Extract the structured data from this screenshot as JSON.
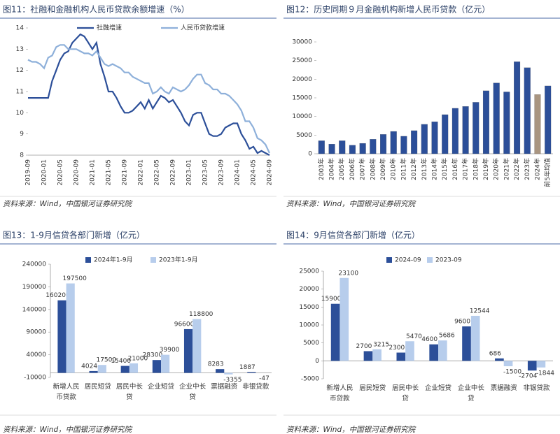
{
  "chart_data": [
    {
      "type": "line",
      "title": "图11：社融和金融机构人民币贷款余额增速（%）",
      "source": "资料来源：Wind，中国银河证券研究院",
      "categories": [
        "2019-09",
        null,
        null,
        null,
        "2020-01",
        null,
        null,
        null,
        "2020-05",
        null,
        null,
        null,
        "2020-09",
        null,
        null,
        null,
        "2021-01",
        null,
        null,
        null,
        "2021-05",
        null,
        null,
        null,
        "2021-09",
        null,
        null,
        null,
        "2022-01",
        null,
        null,
        null,
        "2022-05",
        null,
        null,
        null,
        "2022-09",
        null,
        null,
        null,
        "2023-01",
        null,
        null,
        null,
        "2023-05",
        null,
        null,
        null,
        "2023-09",
        null,
        null,
        null,
        "2024-01",
        null,
        null,
        null,
        "2024-05",
        null,
        null,
        null,
        "2024-09"
      ],
      "series": [
        {
          "name": "社融增速",
          "color": "#2c4f99",
          "values": [
            10.7,
            10.7,
            10.7,
            10.7,
            10.7,
            10.7,
            11.5,
            12.0,
            12.5,
            12.8,
            12.9,
            13.3,
            13.5,
            13.7,
            13.6,
            13.3,
            13.0,
            13.3,
            12.3,
            11.7,
            11.0,
            11.0,
            10.7,
            10.3,
            10.0,
            10.0,
            10.1,
            10.3,
            10.5,
            10.2,
            10.6,
            10.2,
            10.5,
            10.8,
            10.7,
            10.5,
            10.6,
            10.3,
            10.0,
            9.6,
            9.4,
            9.9,
            10.0,
            10.0,
            9.5,
            9.0,
            8.9,
            8.9,
            9.0,
            9.3,
            9.4,
            9.5,
            9.5,
            9.0,
            8.7,
            8.3,
            8.4,
            8.1,
            8.2,
            8.1,
            8.0
          ]
        },
        {
          "name": "人民币贷款增速",
          "color": "#8eb0da",
          "values": [
            12.5,
            12.4,
            12.4,
            12.3,
            12.1,
            12.6,
            12.7,
            13.1,
            13.2,
            13.2,
            13.0,
            13.0,
            13.0,
            12.9,
            12.8,
            12.8,
            12.7,
            12.9,
            12.6,
            12.3,
            12.2,
            12.3,
            12.2,
            12.1,
            11.9,
            11.9,
            11.7,
            11.6,
            11.5,
            11.4,
            11.4,
            10.9,
            11.0,
            11.2,
            11.0,
            10.9,
            11.2,
            11.1,
            11.0,
            11.1,
            11.3,
            11.6,
            11.8,
            11.8,
            11.4,
            11.3,
            11.1,
            11.1,
            10.9,
            10.9,
            10.8,
            10.6,
            10.4,
            10.1,
            9.6,
            9.6,
            9.3,
            8.8,
            8.7,
            8.5,
            8.1
          ]
        }
      ],
      "ylim": [
        8,
        14
      ],
      "yticks": [
        8,
        9,
        10,
        11,
        12,
        13,
        14
      ],
      "grid": false,
      "legend": "top"
    },
    {
      "type": "bar",
      "title": "图12：历史同期９月金融机构新增人民币贷款（亿元）",
      "source": "资料来源：Wind，中国银河证券研究院",
      "categories": [
        "2003年",
        "2004年",
        "2005年",
        "2006年",
        "2007年",
        "2008年",
        "2009年",
        "2010年",
        "2011年",
        "2012年",
        "2013年",
        "2014年",
        "2015年",
        "2016年",
        "2017年",
        "2018年",
        "2019年",
        "2020年",
        "2021年",
        "2022年",
        "2023年",
        "2024年",
        "前5年均值"
      ],
      "values": [
        3500,
        2600,
        3500,
        2300,
        2800,
        3900,
        5200,
        6000,
        4700,
        6200,
        7900,
        8600,
        10500,
        12200,
        12700,
        13800,
        16900,
        19000,
        16600,
        24700,
        23100,
        15900,
        18200
      ],
      "colors": [
        "#2c4f99",
        "#2c4f99",
        "#2c4f99",
        "#2c4f99",
        "#2c4f99",
        "#2c4f99",
        "#2c4f99",
        "#2c4f99",
        "#2c4f99",
        "#2c4f99",
        "#2c4f99",
        "#2c4f99",
        "#2c4f99",
        "#2c4f99",
        "#2c4f99",
        "#2c4f99",
        "#2c4f99",
        "#2c4f99",
        "#2c4f99",
        "#2c4f99",
        "#2c4f99",
        "#a99580",
        "#2c4f99"
      ],
      "ylim": [
        0,
        30000
      ],
      "yticks": [
        0,
        5000,
        10000,
        15000,
        20000,
        25000,
        30000
      ],
      "grid": false
    },
    {
      "type": "grouped_bar",
      "title": "图13：1-9月信贷各部门新增（亿元）",
      "source": "资料来源：Wind，中国银河证券研究院",
      "categories": [
        "新增人民币贷款",
        "居民短贷",
        "居民中长贷",
        "企业短贷",
        "企业中长贷",
        "票据融资",
        "非银贷款"
      ],
      "series": [
        {
          "name": "2024年1-9月",
          "color": "#2c4f99",
          "values": [
            160200,
            4024,
            15400,
            28300,
            96600,
            8283,
            1887
          ]
        },
        {
          "name": "2023年1-9月",
          "color": "#b7cdec",
          "values": [
            197500,
            17500,
            21000,
            39900,
            118800,
            -3355,
            -47
          ]
        }
      ],
      "ylim": [
        -10000,
        240000
      ],
      "yticks": [
        -10000,
        40000,
        90000,
        140000,
        190000,
        240000
      ],
      "grid": false,
      "legend": "top"
    },
    {
      "type": "grouped_bar",
      "title": "图14：9月信贷各部门新增（亿元）",
      "source": "资料来源：Wind，中国银河证券研究院",
      "categories": [
        "新增人民币贷款",
        "居民短贷",
        "居民中长贷",
        "企业短贷",
        "企业中长贷",
        "票据融资",
        "非银贷款"
      ],
      "series": [
        {
          "name": "2024-09",
          "color": "#2c4f99",
          "values": [
            15900,
            2700,
            2300,
            4600,
            9600,
            686,
            -2704
          ]
        },
        {
          "name": "2023-09",
          "color": "#b7cdec",
          "values": [
            23100,
            3215,
            5470,
            5686,
            12544,
            -1500,
            -1844
          ]
        }
      ],
      "ylim": [
        -5000,
        25000
      ],
      "yticks": [
        -5000,
        0,
        5000,
        10000,
        15000,
        20000,
        25000
      ],
      "grid": false,
      "legend": "top"
    }
  ]
}
